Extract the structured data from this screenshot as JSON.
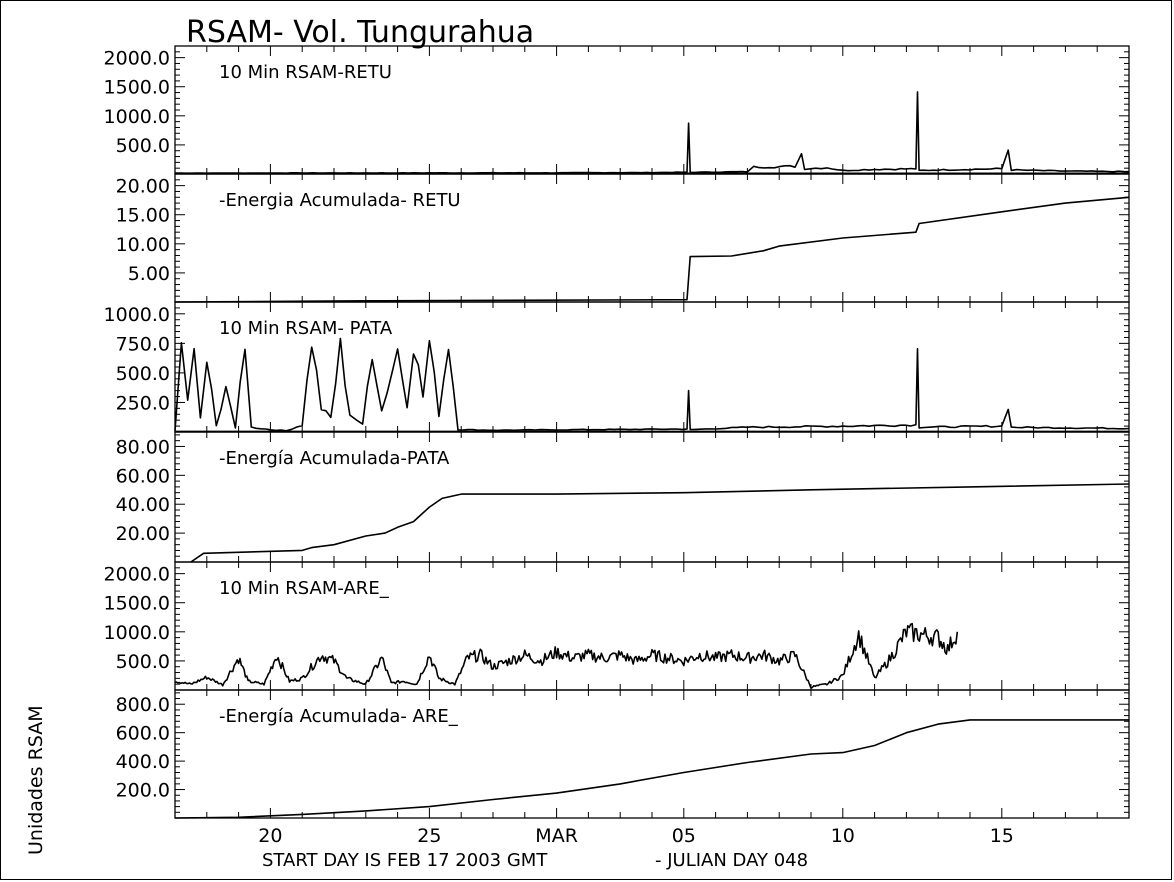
{
  "chart_data": {
    "type": "line",
    "title": "RSAM- Vol. Tungurahua",
    "ylabel": "Unidades RSAM",
    "footer": {
      "start": "START DAY IS FEB 17 2003 GMT",
      "julian": "- JULIAN DAY 048"
    },
    "x_axis": {
      "unit": "day",
      "min": 0,
      "max": 30,
      "ticks": [
        {
          "day": 3,
          "label": "20"
        },
        {
          "day": 8,
          "label": "25"
        },
        {
          "day": 12,
          "label": "MAR"
        },
        {
          "day": 16,
          "label": "05"
        },
        {
          "day": 21,
          "label": "10"
        },
        {
          "day": 26,
          "label": "15"
        }
      ]
    },
    "panels": [
      {
        "title": "10 Min RSAM-RETU",
        "kind": "rsam",
        "ylim": [
          0,
          2200
        ],
        "yticks": [
          500,
          1000,
          1500,
          2000
        ],
        "ytick_labels": [
          "500.0",
          "1000.0",
          "1500.0",
          "2000.0"
        ],
        "baseline": 12,
        "points": [
          [
            0,
            15
          ],
          [
            5,
            18
          ],
          [
            10,
            20
          ],
          [
            12,
            20
          ],
          [
            15,
            25
          ],
          [
            16.1,
            30
          ],
          [
            16.15,
            850
          ],
          [
            16.2,
            30
          ],
          [
            18,
            40
          ],
          [
            18.2,
            120
          ],
          [
            19.5,
            130
          ],
          [
            19.7,
            350
          ],
          [
            19.8,
            90
          ],
          [
            20.5,
            110
          ],
          [
            21,
            60
          ],
          [
            22,
            80
          ],
          [
            23.3,
            90
          ],
          [
            23.35,
            1250
          ],
          [
            23.4,
            60
          ],
          [
            24,
            70
          ],
          [
            26,
            90
          ],
          [
            26.2,
            420
          ],
          [
            26.3,
            70
          ],
          [
            28,
            50
          ],
          [
            30,
            40
          ]
        ]
      },
      {
        "title": "-Energia Acumulada- RETU",
        "kind": "cumulative",
        "ylim": [
          0,
          22
        ],
        "yticks": [
          5,
          10,
          15,
          20
        ],
        "ytick_labels": [
          "5.00",
          "10.00",
          "15.00",
          "20.00"
        ],
        "points": [
          [
            0,
            0
          ],
          [
            6,
            0.2
          ],
          [
            16.1,
            0.4
          ],
          [
            16.2,
            7.8
          ],
          [
            17.5,
            7.9
          ],
          [
            18.5,
            8.8
          ],
          [
            19,
            9.6
          ],
          [
            21,
            11
          ],
          [
            23.3,
            12
          ],
          [
            23.4,
            13.5
          ],
          [
            26,
            15.5
          ],
          [
            28,
            17
          ],
          [
            30,
            18
          ]
        ]
      },
      {
        "title": "10 Min RSAM- PATA",
        "kind": "rsam",
        "ylim": [
          0,
          1100
        ],
        "yticks": [
          250,
          500,
          750,
          1000
        ],
        "ytick_labels": [
          "250.0",
          "500.0",
          "750.0",
          "1000.0"
        ],
        "baseline": 5,
        "points": [
          [
            0,
            10
          ],
          [
            0.2,
            780
          ],
          [
            0.4,
            250
          ],
          [
            0.6,
            650
          ],
          [
            0.8,
            120
          ],
          [
            1.0,
            600
          ],
          [
            1.3,
            50
          ],
          [
            1.6,
            400
          ],
          [
            1.9,
            30
          ],
          [
            2.2,
            780
          ],
          [
            2.4,
            40
          ],
          [
            3,
            20
          ],
          [
            3.5,
            10
          ],
          [
            4,
            60
          ],
          [
            4.3,
            780
          ],
          [
            4.6,
            200
          ],
          [
            4.9,
            120
          ],
          [
            5.2,
            720
          ],
          [
            5.5,
            150
          ],
          [
            5.9,
            60
          ],
          [
            6.2,
            700
          ],
          [
            6.5,
            180
          ],
          [
            7.0,
            700
          ],
          [
            7.3,
            240
          ],
          [
            7.5,
            760
          ],
          [
            7.8,
            300
          ],
          [
            8.0,
            760
          ],
          [
            8.3,
            150
          ],
          [
            8.6,
            760
          ],
          [
            8.9,
            20
          ],
          [
            10,
            15
          ],
          [
            13,
            20
          ],
          [
            16.1,
            25
          ],
          [
            16.15,
            320
          ],
          [
            16.2,
            20
          ],
          [
            18,
            40
          ],
          [
            21,
            50
          ],
          [
            23.3,
            60
          ],
          [
            23.35,
            800
          ],
          [
            23.4,
            40
          ],
          [
            26,
            50
          ],
          [
            26.2,
            220
          ],
          [
            26.3,
            40
          ],
          [
            30,
            30
          ]
        ]
      },
      {
        "title": "-Energía Acumulada-PATA",
        "kind": "cumulative",
        "ylim": [
          0,
          90
        ],
        "yticks": [
          20,
          40,
          60,
          80
        ],
        "ytick_labels": [
          "20.00",
          "40.00",
          "60.00",
          "80.00"
        ],
        "points": [
          [
            0.5,
            0
          ],
          [
            0.9,
            6
          ],
          [
            4,
            8
          ],
          [
            4.3,
            10
          ],
          [
            5,
            12
          ],
          [
            6,
            18
          ],
          [
            6.6,
            20
          ],
          [
            7,
            24
          ],
          [
            7.5,
            28
          ],
          [
            8,
            38
          ],
          [
            8.4,
            44
          ],
          [
            9,
            47
          ],
          [
            12,
            47
          ],
          [
            16,
            48
          ],
          [
            20,
            50
          ],
          [
            25,
            52
          ],
          [
            30,
            54
          ]
        ]
      },
      {
        "title": "10 Min RSAM-ARE_",
        "kind": "rsam",
        "ylim": [
          0,
          2200
        ],
        "yticks": [
          500,
          1000,
          1500,
          2000
        ],
        "ytick_labels": [
          "500.0",
          "1000.0",
          "1500.0",
          "2000.0"
        ],
        "baseline": 0,
        "end": 24.6,
        "noise": true,
        "points": [
          [
            0,
            150
          ],
          [
            0.5,
            100
          ],
          [
            1,
            220
          ],
          [
            1.5,
            90
          ],
          [
            2,
            550
          ],
          [
            2.3,
            150
          ],
          [
            2.8,
            100
          ],
          [
            3.2,
            600
          ],
          [
            3.6,
            150
          ],
          [
            4,
            200
          ],
          [
            4.6,
            600
          ],
          [
            5,
            500
          ],
          [
            5.4,
            200
          ],
          [
            6,
            100
          ],
          [
            6.5,
            550
          ],
          [
            6.8,
            120
          ],
          [
            7.2,
            150
          ],
          [
            7.6,
            100
          ],
          [
            8,
            600
          ],
          [
            8.3,
            200
          ],
          [
            8.8,
            100
          ],
          [
            9.2,
            550
          ],
          [
            9.6,
            600
          ],
          [
            10,
            400
          ],
          [
            10.5,
            500
          ],
          [
            11,
            600
          ],
          [
            11.5,
            500
          ],
          [
            12,
            650
          ],
          [
            12.5,
            550
          ],
          [
            13,
            600
          ],
          [
            13.5,
            550
          ],
          [
            14,
            600
          ],
          [
            14.5,
            500
          ],
          [
            15,
            600
          ],
          [
            15.5,
            550
          ],
          [
            16,
            500
          ],
          [
            16.5,
            600
          ],
          [
            17,
            550
          ],
          [
            17.5,
            600
          ],
          [
            18,
            550
          ],
          [
            18.5,
            600
          ],
          [
            19,
            500
          ],
          [
            19.5,
            600
          ],
          [
            20,
            50
          ],
          [
            20.5,
            100
          ],
          [
            21,
            250
          ],
          [
            21.5,
            950
          ],
          [
            22,
            200
          ],
          [
            22.5,
            550
          ],
          [
            23,
            1000
          ],
          [
            23.5,
            950
          ],
          [
            24,
            900
          ],
          [
            24.3,
            700
          ],
          [
            24.6,
            1000
          ]
        ]
      },
      {
        "title": "-Energía Acumulada- ARE_",
        "kind": "cumulative",
        "ylim": [
          0,
          900
        ],
        "yticks": [
          200,
          400,
          600,
          800
        ],
        "ytick_labels": [
          "200.0",
          "400.0",
          "600.0",
          "800.0"
        ],
        "points": [
          [
            0,
            0
          ],
          [
            2,
            5
          ],
          [
            4,
            25
          ],
          [
            6,
            50
          ],
          [
            8,
            80
          ],
          [
            10,
            130
          ],
          [
            12,
            175
          ],
          [
            14,
            240
          ],
          [
            16,
            320
          ],
          [
            18,
            390
          ],
          [
            20,
            450
          ],
          [
            21,
            460
          ],
          [
            22,
            510
          ],
          [
            23,
            600
          ],
          [
            24,
            660
          ],
          [
            25,
            690
          ],
          [
            30,
            690
          ]
        ]
      }
    ]
  }
}
